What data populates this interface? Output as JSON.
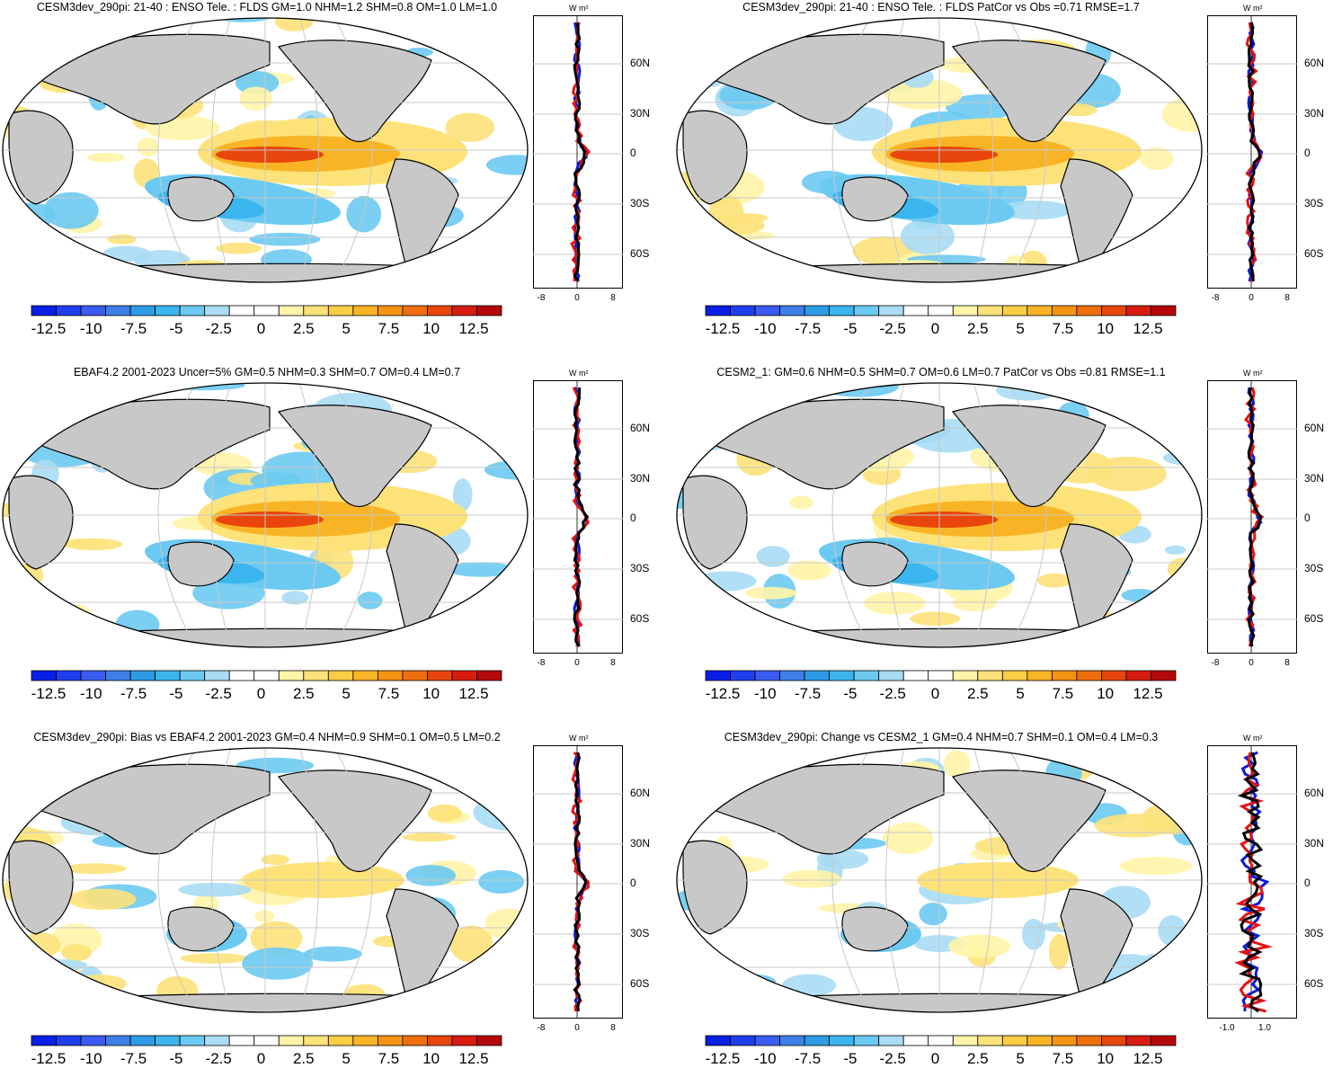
{
  "colorbar": {
    "colors": [
      "#0a1fe6",
      "#1f3fef",
      "#3a5cf0",
      "#3f7fe8",
      "#2d9ce6",
      "#3bb5ee",
      "#6ccaf2",
      "#a9dcf4",
      "#ffffff",
      "#ffffff",
      "#fff4a8",
      "#fde27a",
      "#fbcd45",
      "#f9b425",
      "#f49412",
      "#ef6e0d",
      "#e8460c",
      "#d71c10",
      "#b5080a"
    ],
    "labels": [
      "-12.5",
      "-10",
      "-7.5",
      "-5",
      "-2.5",
      "0",
      "2.5",
      "5",
      "7.5",
      "10",
      "12.5"
    ]
  },
  "profile_units": "W m²",
  "lat_labels": [
    "60N",
    "30N",
    "0",
    "30S",
    "60S"
  ],
  "panels": [
    {
      "title": "CESM3dev_290pi: 21-40 : ENSO Tele. : FLDS GM=1.0 NHM=1.2 SHM=0.8 OM=1.0 LM=1.0",
      "xticks": [
        "-8",
        "0",
        "8"
      ]
    },
    {
      "title": "CESM3dev_290pi: 21-40 : ENSO Tele. : FLDS PatCor vs Obs =0.71 RMSE=1.7",
      "xticks": [
        "-8",
        "0",
        "8"
      ]
    },
    {
      "title": "EBAF4.2 2001-2023 Uncer=5% GM=0.5 NHM=0.3 SHM=0.7 OM=0.4 LM=0.7",
      "xticks": [
        "-8",
        "0",
        "8"
      ]
    },
    {
      "title": "CESM2_1: GM=0.6 NHM=0.5 SHM=0.7 OM=0.6 LM=0.7 PatCor vs Obs =0.81 RMSE=1.1",
      "xticks": [
        "-8",
        "0",
        "8"
      ]
    },
    {
      "title": "CESM3dev_290pi: Bias vs EBAF4.2 2001-2023 GM=0.4 NHM=0.9 SHM=0.1 OM=0.5 LM=0.2",
      "xticks": [
        "-8",
        "0",
        "8"
      ]
    },
    {
      "title": "CESM3dev_290pi: Change vs CESM2_1 GM=0.4 NHM=0.7 SHM=0.1 OM=0.4 LM=0.3",
      "xticks": [
        "-1.0",
        "1.0"
      ]
    }
  ]
}
